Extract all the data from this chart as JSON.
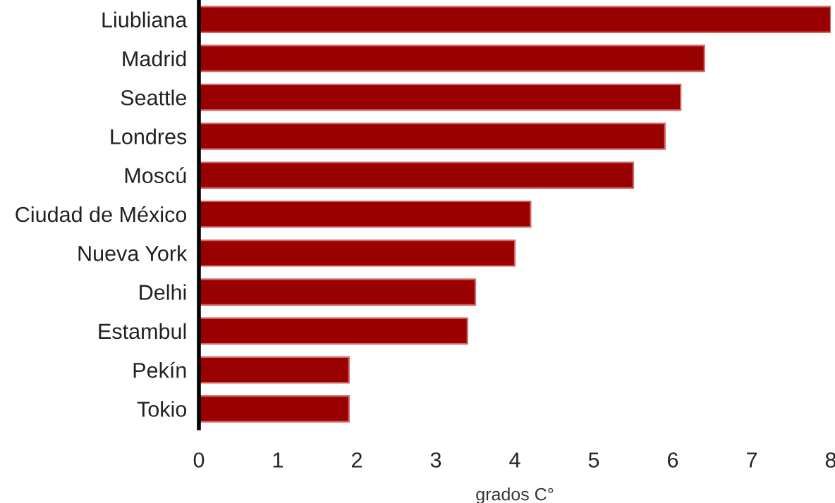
{
  "chart_data": {
    "type": "bar",
    "orientation": "horizontal",
    "xlabel": "grados C°",
    "categories": [
      "Liubliana",
      "Madrid",
      "Seattle",
      "Londres",
      "Moscú",
      "Ciudad de México",
      "Nueva York",
      "Delhi",
      "Estambul",
      "Pekín",
      "Tokio"
    ],
    "series": [
      {
        "color": "#990000",
        "values": [
          8.0,
          6.4,
          6.1,
          5.9,
          5.5,
          4.2,
          4.0,
          3.5,
          3.4,
          1.9,
          1.9
        ]
      }
    ],
    "xlim": [
      0,
      8
    ],
    "xticks": [
      0,
      1,
      2,
      3,
      4,
      5,
      6,
      7,
      8
    ],
    "grid": false,
    "legend": false
  }
}
